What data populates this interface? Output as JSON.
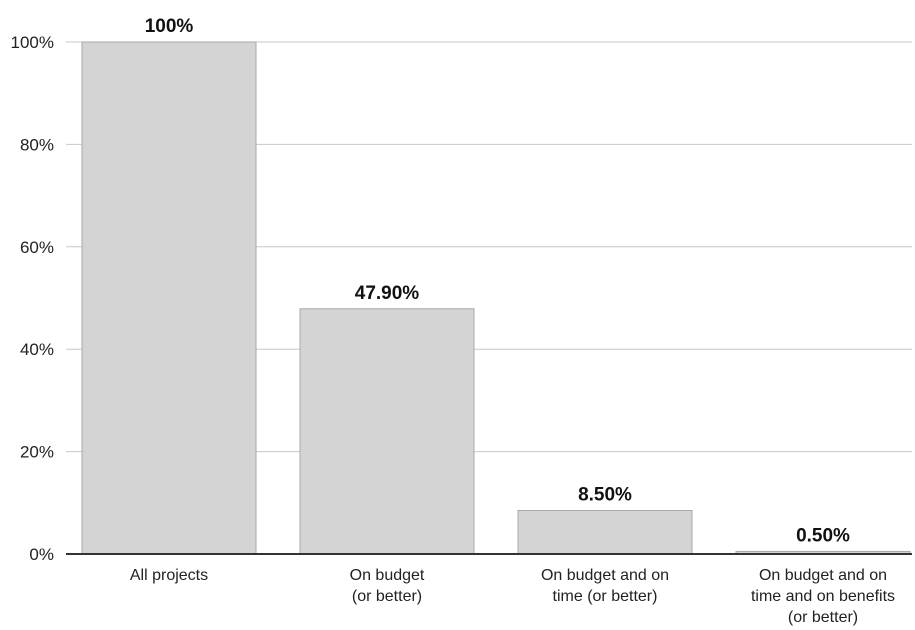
{
  "chart_data": {
    "type": "bar",
    "title": "",
    "xlabel": "",
    "ylabel": "",
    "ylim": [
      0,
      100
    ],
    "yticks": [
      0,
      20,
      40,
      60,
      80,
      100
    ],
    "ytick_labels": [
      "0%",
      "20%",
      "40%",
      "60%",
      "80%",
      "100%"
    ],
    "grid": true,
    "legend": "none",
    "categories": [
      [
        "All projects"
      ],
      [
        "On budget",
        "(or better)"
      ],
      [
        "On budget and on",
        "time (or better)"
      ],
      [
        "On budget and on",
        "time and on benefits",
        "(or better)"
      ]
    ],
    "values": [
      100,
      47.9,
      8.5,
      0.5
    ],
    "value_labels": [
      "100%",
      "47.90%",
      "8.50%",
      "0.50%"
    ],
    "colors": {
      "bar_fill": "#d4d4d4",
      "bar_stroke": "#a8a8a8",
      "grid": "#c8c8c8",
      "axis": "#333333",
      "text": "#222222"
    }
  }
}
